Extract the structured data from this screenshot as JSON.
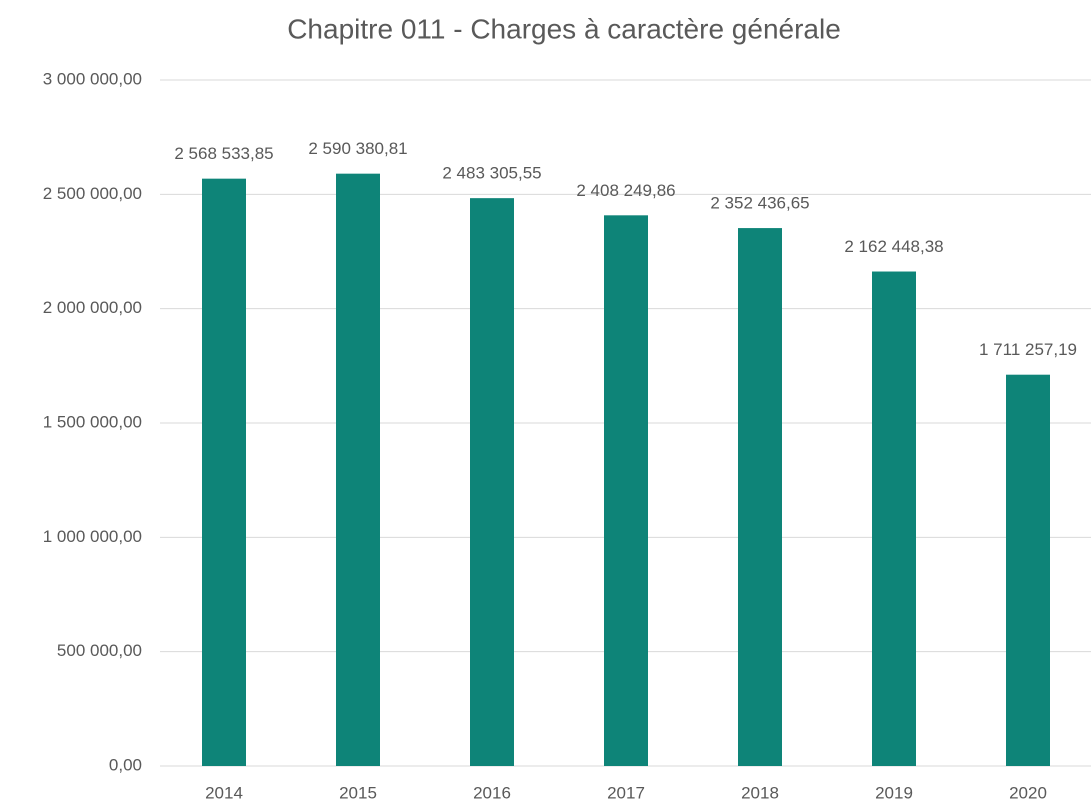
{
  "chart_data": {
    "type": "bar",
    "title": "Chapitre 011 - Charges à caractère générale",
    "categories": [
      "2014",
      "2015",
      "2016",
      "2017",
      "2018",
      "2019",
      "2020"
    ],
    "values": [
      2568533.85,
      2590380.81,
      2483305.55,
      2408249.86,
      2352436.65,
      2162448.38,
      1711257.19
    ],
    "value_labels": [
      "2 568 533,85",
      "2 590 380,81",
      "2 483 305,55",
      "2 408 249,86",
      "2 352 436,65",
      "2 162 448,38",
      "1 711 257,19"
    ],
    "color": "#0e8478",
    "ylim": [
      0,
      3000000
    ],
    "yticks": [
      {
        "value": 0,
        "label": "0,00"
      },
      {
        "value": 500000,
        "label": "500 000,00"
      },
      {
        "value": 1000000,
        "label": "1 000 000,00"
      },
      {
        "value": 1500000,
        "label": "1 500 000,00"
      },
      {
        "value": 2000000,
        "label": "2 000 000,00"
      },
      {
        "value": 2500000,
        "label": "2 500 000,00"
      },
      {
        "value": 3000000,
        "label": "3 000 000,00"
      }
    ],
    "grid": true
  }
}
